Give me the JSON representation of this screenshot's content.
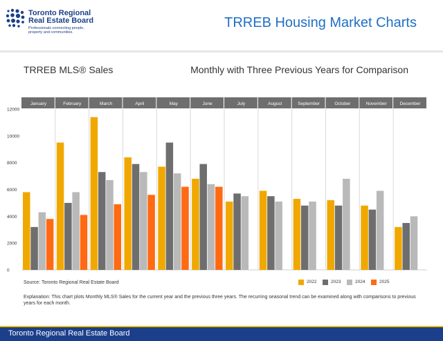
{
  "header": {
    "logo": {
      "name_line1": "Toronto Regional",
      "name_line2": "Real Estate Board",
      "tagline_line1": "Professionals connecting people,",
      "tagline_line2": "property and communities."
    },
    "title": "TRREB Housing Market Charts"
  },
  "footer": {
    "text": "Toronto Regional Real Estate Board"
  },
  "source": "Source: Toronto Regional Real Estate Board",
  "explanation": "Explanation: This chart plots Monthly MLS® Sales for the current year and the previous three years. The recurring seasonal trend can be examined along with comparisons to previous years for each month.",
  "colors": {
    "brand_blue": "#1b3f8b",
    "title_blue": "#1f6fc5",
    "accent_yellow": "#f4c200",
    "month_band": "#6e6e6e"
  },
  "chart_data": {
    "type": "bar",
    "title": "TRREB MLS® Sales",
    "subtitle": "Monthly with Three Previous Years for Comparison",
    "categories": [
      "January",
      "February",
      "March",
      "April",
      "May",
      "June",
      "July",
      "August",
      "September",
      "October",
      "November",
      "December"
    ],
    "series": [
      {
        "name": "2022",
        "color": "#f0a800",
        "values": [
          5800,
          9500,
          11400,
          8400,
          7700,
          6800,
          5100,
          5900,
          5300,
          5200,
          4800,
          3200
        ]
      },
      {
        "name": "2023",
        "color": "#6e6e6e",
        "values": [
          3200,
          5000,
          7300,
          7900,
          9500,
          7900,
          5700,
          5500,
          4800,
          4800,
          4500,
          3500
        ]
      },
      {
        "name": "2024",
        "color": "#b9b9b9",
        "values": [
          4300,
          5800,
          6700,
          7300,
          7200,
          6400,
          5500,
          5100,
          5100,
          6800,
          5900,
          4000
        ]
      },
      {
        "name": "2025",
        "color": "#ff6a13",
        "values": [
          3800,
          4100,
          4900,
          5600,
          6200,
          6200,
          null,
          null,
          null,
          null,
          null,
          null
        ]
      }
    ],
    "xlabel": "",
    "ylabel": "",
    "ylim": [
      0,
      12000
    ],
    "yticks": [
      0,
      2000,
      4000,
      6000,
      8000,
      10000,
      12000
    ],
    "grid": false,
    "legend": "bottom-right"
  }
}
